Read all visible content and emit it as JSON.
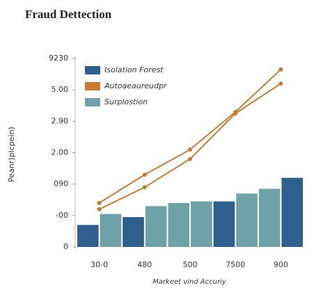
{
  "chart_data": [
    {
      "type": "bar",
      "title": "Fraud Dettection",
      "ylabel": "Peanr)plcpein)",
      "xlabel": "Markeet vind Accuriy",
      "ylim": [
        0,
        6
      ],
      "yticks": [
        {
          "value": 0,
          "label": "0"
        },
        {
          "value": 1,
          "label": "-00"
        },
        {
          "value": 2,
          "label": "090"
        },
        {
          "value": 3,
          "label": "2.00"
        },
        {
          "value": 4,
          "label": "2.90"
        },
        {
          "value": 5,
          "label": "5.00"
        },
        {
          "value": 6,
          "label": "9230"
        }
      ],
      "categories": [
        null,
        null,
        null,
        null,
        null,
        null,
        null,
        null,
        null,
        null
      ],
      "series": [
        {
          "name": "Isolation Forest",
          "color": "#2f5f8c",
          "values": [
            0.7,
            null,
            0.95,
            null,
            null,
            null,
            1.45,
            null,
            null,
            2.2
          ]
        },
        {
          "name": "Surplostion",
          "color": "#6fa2a6",
          "values": [
            null,
            1.05,
            null,
            1.3,
            1.4,
            1.45,
            null,
            1.7,
            1.85,
            null
          ]
        }
      ]
    },
    {
      "type": "line",
      "categories": [
        "30-0",
        "480",
        "500",
        "7500",
        "900"
      ],
      "series": [
        {
          "name": "Autoaeaureudpr",
          "color": "#c87b33",
          "values": [
            1.4,
            2.3,
            3.1,
            4.3,
            5.65
          ]
        },
        {
          "color": "#c87b33",
          "values": [
            1.2,
            1.9,
            2.8,
            4.25,
            5.2
          ]
        }
      ]
    }
  ]
}
